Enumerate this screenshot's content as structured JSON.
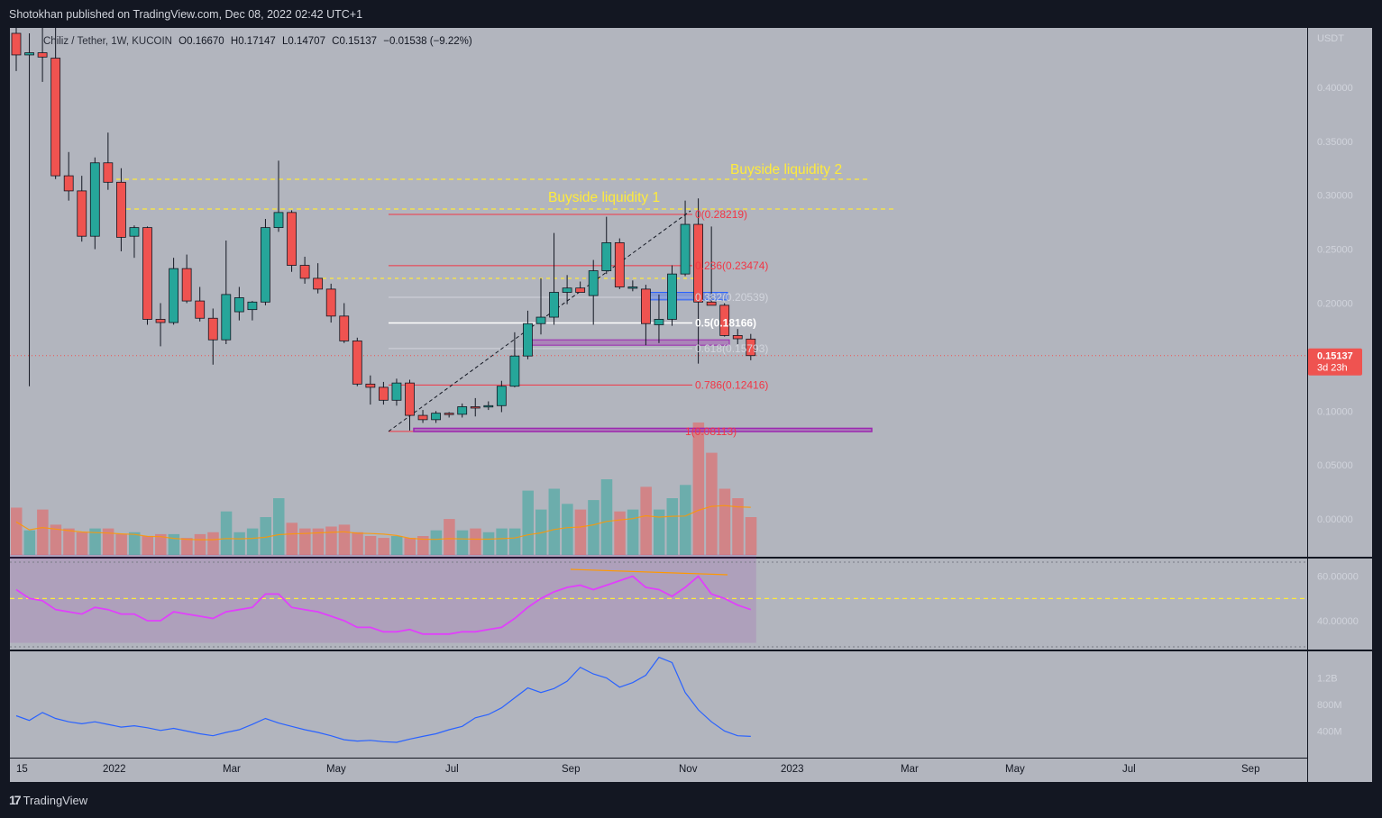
{
  "header": {
    "publisher": "Shotokhan published on TradingView.com, Dec 08, 2022 02:42 UTC+1"
  },
  "footer": {
    "logo_text": "TradingView"
  },
  "symbol_info": {
    "title": "Chiliz / Tether, 1W, KUCOIN",
    "open_label": "O",
    "open": "0.16670",
    "high_label": "H",
    "high": "0.17147",
    "low_label": "L",
    "low": "0.14707",
    "close_label": "C",
    "close": "0.15137",
    "change": "−0.01538 (−9.22%)"
  },
  "price_scale": {
    "unit": "USDT",
    "ticks": [
      "0.40000",
      "0.35000",
      "0.30000",
      "0.25000",
      "0.20000",
      "0.15000",
      "0.10000",
      "0.05000",
      "0.00000"
    ],
    "last_price": "0.15137",
    "countdown": "3d 23h"
  },
  "rsi_scale": {
    "ticks": [
      "60.00000",
      "40.00000"
    ]
  },
  "obv_scale": {
    "ticks": [
      "1.2B",
      "800M",
      "400M"
    ]
  },
  "time_axis": {
    "ticks": [
      "15",
      "2022",
      "Mar",
      "May",
      "Jul",
      "Sep",
      "Nov",
      "2023",
      "Mar",
      "May",
      "Jul",
      "Sep"
    ]
  },
  "annotations": {
    "buyside_1": "Buyside liquidity 1",
    "buyside_2": "Buyside liquidity 2"
  },
  "fib_labels": [
    "0(0.28219)",
    "0.236(0.23474)",
    "0.382(0.20539)",
    "0.5(0.18166)",
    "0.618(0.15793)",
    "0.786(0.12416)",
    "1(0.08113)"
  ],
  "colors": {
    "background": "#b2b5be",
    "bull": "#26a69a",
    "bear": "#ef5350",
    "fib_red": "#f23645",
    "fib_white": "#ffffff",
    "fib_gray": "#d1d4dc",
    "liquidity": "#ffeb3b",
    "zone_blue": "#2962ff",
    "zone_purple": "#9c27b0",
    "rsi": "#e040fb",
    "obv": "#2962ff",
    "volume_ma": "#ff9800"
  },
  "chart_data": {
    "type": "candlestick",
    "title": "Chiliz / Tether, 1W, KUCOIN",
    "interval": "1W",
    "candles": [
      {
        "o": 0.45,
        "h": 0.47,
        "l": 0.415,
        "c": 0.43
      },
      {
        "o": 0.43,
        "h": 0.45,
        "l": 0.123,
        "c": 0.432
      },
      {
        "o": 0.432,
        "h": 0.455,
        "l": 0.405,
        "c": 0.428
      },
      {
        "o": 0.427,
        "h": 0.46,
        "l": 0.315,
        "c": 0.318
      },
      {
        "o": 0.318,
        "h": 0.34,
        "l": 0.295,
        "c": 0.304
      },
      {
        "o": 0.304,
        "h": 0.318,
        "l": 0.257,
        "c": 0.262
      },
      {
        "o": 0.262,
        "h": 0.335,
        "l": 0.25,
        "c": 0.33
      },
      {
        "o": 0.33,
        "h": 0.358,
        "l": 0.305,
        "c": 0.312
      },
      {
        "o": 0.312,
        "h": 0.325,
        "l": 0.248,
        "c": 0.261
      },
      {
        "o": 0.262,
        "h": 0.272,
        "l": 0.242,
        "c": 0.27
      },
      {
        "o": 0.27,
        "h": 0.271,
        "l": 0.18,
        "c": 0.185
      },
      {
        "o": 0.185,
        "h": 0.2,
        "l": 0.16,
        "c": 0.182
      },
      {
        "o": 0.182,
        "h": 0.242,
        "l": 0.18,
        "c": 0.232
      },
      {
        "o": 0.232,
        "h": 0.245,
        "l": 0.2,
        "c": 0.202
      },
      {
        "o": 0.202,
        "h": 0.215,
        "l": 0.183,
        "c": 0.186
      },
      {
        "o": 0.186,
        "h": 0.195,
        "l": 0.143,
        "c": 0.166
      },
      {
        "o": 0.166,
        "h": 0.258,
        "l": 0.162,
        "c": 0.208
      },
      {
        "o": 0.192,
        "h": 0.215,
        "l": 0.184,
        "c": 0.205
      },
      {
        "o": 0.194,
        "h": 0.202,
        "l": 0.184,
        "c": 0.201
      },
      {
        "o": 0.201,
        "h": 0.278,
        "l": 0.198,
        "c": 0.27
      },
      {
        "o": 0.27,
        "h": 0.332,
        "l": 0.266,
        "c": 0.284
      },
      {
        "o": 0.284,
        "h": 0.286,
        "l": 0.229,
        "c": 0.235
      },
      {
        "o": 0.235,
        "h": 0.243,
        "l": 0.218,
        "c": 0.223
      },
      {
        "o": 0.223,
        "h": 0.237,
        "l": 0.209,
        "c": 0.213
      },
      {
        "o": 0.213,
        "h": 0.218,
        "l": 0.182,
        "c": 0.188
      },
      {
        "o": 0.188,
        "h": 0.2,
        "l": 0.163,
        "c": 0.165
      },
      {
        "o": 0.165,
        "h": 0.168,
        "l": 0.123,
        "c": 0.125
      },
      {
        "o": 0.125,
        "h": 0.133,
        "l": 0.106,
        "c": 0.122
      },
      {
        "o": 0.122,
        "h": 0.127,
        "l": 0.106,
        "c": 0.11
      },
      {
        "o": 0.11,
        "h": 0.13,
        "l": 0.105,
        "c": 0.126
      },
      {
        "o": 0.126,
        "h": 0.129,
        "l": 0.082,
        "c": 0.096
      },
      {
        "o": 0.096,
        "h": 0.101,
        "l": 0.089,
        "c": 0.092
      },
      {
        "o": 0.092,
        "h": 0.1,
        "l": 0.089,
        "c": 0.098
      },
      {
        "o": 0.098,
        "h": 0.099,
        "l": 0.094,
        "c": 0.097
      },
      {
        "o": 0.097,
        "h": 0.107,
        "l": 0.094,
        "c": 0.104
      },
      {
        "o": 0.104,
        "h": 0.112,
        "l": 0.095,
        "c": 0.103
      },
      {
        "o": 0.104,
        "h": 0.109,
        "l": 0.101,
        "c": 0.105
      },
      {
        "o": 0.105,
        "h": 0.128,
        "l": 0.099,
        "c": 0.123
      },
      {
        "o": 0.123,
        "h": 0.173,
        "l": 0.122,
        "c": 0.151
      },
      {
        "o": 0.151,
        "h": 0.193,
        "l": 0.148,
        "c": 0.181
      },
      {
        "o": 0.181,
        "h": 0.223,
        "l": 0.171,
        "c": 0.187
      },
      {
        "o": 0.187,
        "h": 0.265,
        "l": 0.18,
        "c": 0.21
      },
      {
        "o": 0.21,
        "h": 0.226,
        "l": 0.199,
        "c": 0.214
      },
      {
        "o": 0.214,
        "h": 0.22,
        "l": 0.21,
        "c": 0.21
      },
      {
        "o": 0.207,
        "h": 0.24,
        "l": 0.18,
        "c": 0.23
      },
      {
        "o": 0.23,
        "h": 0.28,
        "l": 0.227,
        "c": 0.256
      },
      {
        "o": 0.256,
        "h": 0.26,
        "l": 0.213,
        "c": 0.215
      },
      {
        "o": 0.215,
        "h": 0.221,
        "l": 0.211,
        "c": 0.215
      },
      {
        "o": 0.213,
        "h": 0.217,
        "l": 0.161,
        "c": 0.181
      },
      {
        "o": 0.18,
        "h": 0.208,
        "l": 0.163,
        "c": 0.185
      },
      {
        "o": 0.185,
        "h": 0.235,
        "l": 0.179,
        "c": 0.227
      },
      {
        "o": 0.227,
        "h": 0.295,
        "l": 0.225,
        "c": 0.273
      },
      {
        "o": 0.273,
        "h": 0.297,
        "l": 0.144,
        "c": 0.201
      },
      {
        "o": 0.201,
        "h": 0.271,
        "l": 0.199,
        "c": 0.198
      },
      {
        "o": 0.198,
        "h": 0.2,
        "l": 0.169,
        "c": 0.17
      },
      {
        "o": 0.17,
        "h": 0.176,
        "l": 0.162,
        "c": 0.167
      },
      {
        "o": 0.1667,
        "h": 0.17147,
        "l": 0.14707,
        "c": 0.15137
      }
    ],
    "volume": [
      0.25,
      0.13,
      0.24,
      0.16,
      0.14,
      0.12,
      0.14,
      0.14,
      0.11,
      0.12,
      0.1,
      0.11,
      0.11,
      0.09,
      0.11,
      0.12,
      0.23,
      0.12,
      0.14,
      0.2,
      0.3,
      0.17,
      0.14,
      0.14,
      0.15,
      0.16,
      0.12,
      0.1,
      0.09,
      0.1,
      0.09,
      0.1,
      0.13,
      0.19,
      0.13,
      0.14,
      0.12,
      0.14,
      0.14,
      0.34,
      0.24,
      0.35,
      0.27,
      0.24,
      0.29,
      0.4,
      0.23,
      0.24,
      0.36,
      0.24,
      0.3,
      0.37,
      0.7,
      0.54,
      0.35,
      0.3,
      0.2
    ],
    "rsi": [
      54,
      50,
      49,
      45,
      44,
      43,
      46,
      45,
      43,
      43,
      40,
      40,
      44,
      43,
      42,
      41,
      44,
      45,
      46,
      52,
      52,
      46,
      45,
      44,
      42,
      40,
      37,
      37,
      35,
      35,
      36,
      34,
      34,
      34,
      35,
      35,
      36,
      37,
      41,
      46,
      50,
      53,
      55,
      56,
      54,
      56,
      58,
      60,
      55,
      54,
      51,
      55,
      60,
      52,
      50,
      47,
      45
    ],
    "rsi_level": 50,
    "obv_m": [
      630,
      560,
      680,
      590,
      540,
      510,
      540,
      500,
      460,
      480,
      450,
      410,
      440,
      400,
      360,
      330,
      380,
      420,
      500,
      590,
      520,
      470,
      420,
      380,
      330,
      270,
      250,
      260,
      240,
      230,
      280,
      320,
      360,
      420,
      470,
      600,
      650,
      750,
      900,
      1050,
      980,
      1040,
      1150,
      1360,
      1260,
      1200,
      1060,
      1130,
      1240,
      1510,
      1430,
      980,
      720,
      540,
      400,
      330,
      320
    ],
    "price_range": [
      -0.035,
      0.455
    ],
    "rsi_range": [
      27,
      68
    ],
    "obv_range_m": [
      0,
      1600
    ]
  }
}
